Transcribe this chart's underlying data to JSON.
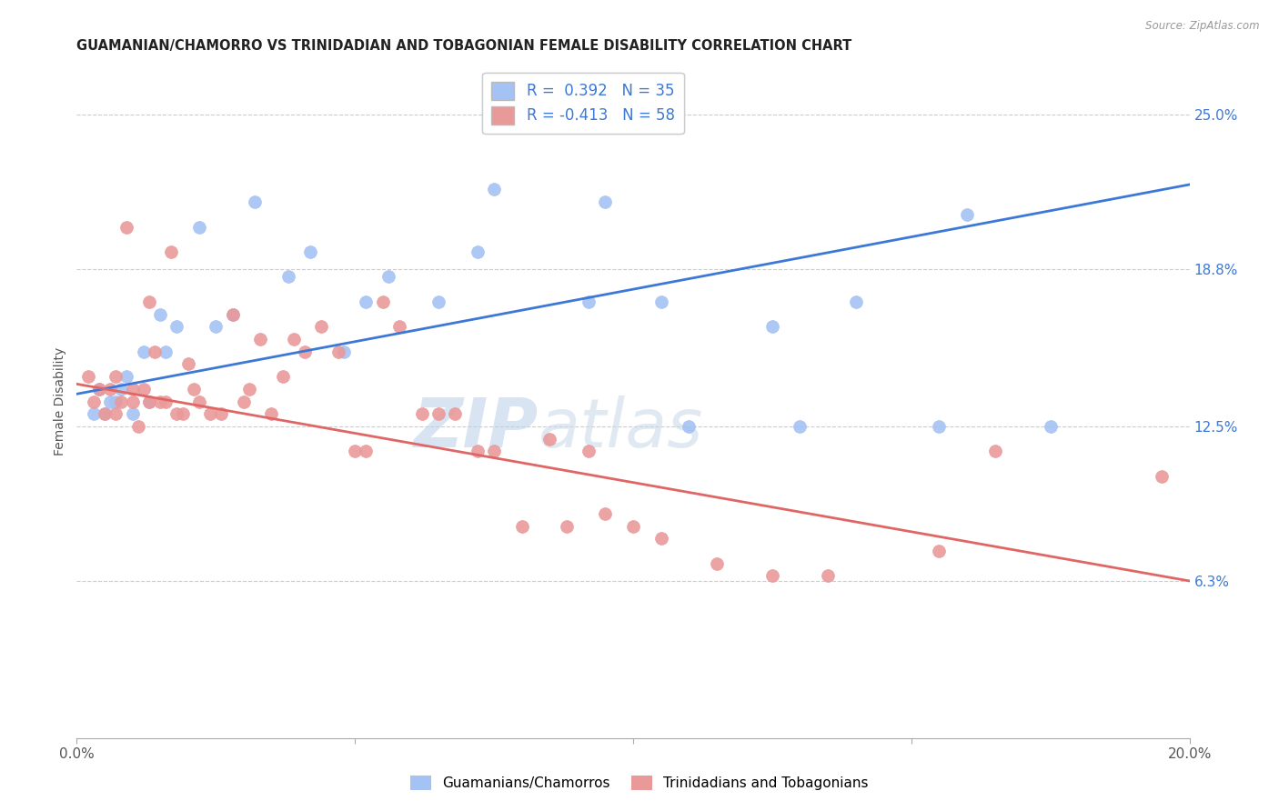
{
  "title": "GUAMANIAN/CHAMORRO VS TRINIDADIAN AND TOBAGONIAN FEMALE DISABILITY CORRELATION CHART",
  "source": "Source: ZipAtlas.com",
  "xlim": [
    0.0,
    0.2
  ],
  "ylim": [
    0.0,
    0.27
  ],
  "blue_R": 0.392,
  "blue_N": 35,
  "pink_R": -0.413,
  "pink_N": 58,
  "blue_color": "#a4c2f4",
  "pink_color": "#ea9999",
  "blue_line_color": "#3c78d8",
  "pink_line_color": "#e06666",
  "watermark_zip": "ZIP",
  "watermark_atlas": "atlas",
  "legend_label_blue": "Guamanians/Chamorros",
  "legend_label_pink": "Trinidadians and Tobagonians",
  "blue_line_x0": 0.0,
  "blue_line_y0": 0.138,
  "blue_line_x1": 0.2,
  "blue_line_y1": 0.222,
  "pink_line_x0": 0.0,
  "pink_line_y0": 0.142,
  "pink_line_x1": 0.2,
  "pink_line_y1": 0.063,
  "blue_scatter_x": [
    0.003,
    0.004,
    0.005,
    0.006,
    0.007,
    0.008,
    0.009,
    0.01,
    0.012,
    0.013,
    0.015,
    0.016,
    0.018,
    0.022,
    0.025,
    0.028,
    0.032,
    0.038,
    0.042,
    0.048,
    0.052,
    0.056,
    0.065,
    0.072,
    0.075,
    0.092,
    0.095,
    0.105,
    0.11,
    0.125,
    0.13,
    0.14,
    0.155,
    0.16,
    0.175
  ],
  "blue_scatter_y": [
    0.13,
    0.14,
    0.13,
    0.135,
    0.135,
    0.14,
    0.145,
    0.13,
    0.155,
    0.135,
    0.17,
    0.155,
    0.165,
    0.205,
    0.165,
    0.17,
    0.215,
    0.185,
    0.195,
    0.155,
    0.175,
    0.185,
    0.175,
    0.195,
    0.22,
    0.175,
    0.215,
    0.175,
    0.125,
    0.165,
    0.125,
    0.175,
    0.125,
    0.21,
    0.125
  ],
  "pink_scatter_x": [
    0.002,
    0.003,
    0.004,
    0.005,
    0.006,
    0.007,
    0.007,
    0.008,
    0.009,
    0.01,
    0.01,
    0.011,
    0.012,
    0.013,
    0.013,
    0.014,
    0.015,
    0.016,
    0.017,
    0.018,
    0.019,
    0.02,
    0.021,
    0.022,
    0.024,
    0.026,
    0.028,
    0.03,
    0.031,
    0.033,
    0.035,
    0.037,
    0.039,
    0.041,
    0.044,
    0.047,
    0.05,
    0.052,
    0.055,
    0.058,
    0.062,
    0.065,
    0.068,
    0.072,
    0.075,
    0.08,
    0.085,
    0.088,
    0.092,
    0.095,
    0.1,
    0.105,
    0.115,
    0.125,
    0.135,
    0.155,
    0.165,
    0.195
  ],
  "pink_scatter_y": [
    0.145,
    0.135,
    0.14,
    0.13,
    0.14,
    0.145,
    0.13,
    0.135,
    0.205,
    0.135,
    0.14,
    0.125,
    0.14,
    0.135,
    0.175,
    0.155,
    0.135,
    0.135,
    0.195,
    0.13,
    0.13,
    0.15,
    0.14,
    0.135,
    0.13,
    0.13,
    0.17,
    0.135,
    0.14,
    0.16,
    0.13,
    0.145,
    0.16,
    0.155,
    0.165,
    0.155,
    0.115,
    0.115,
    0.175,
    0.165,
    0.13,
    0.13,
    0.13,
    0.115,
    0.115,
    0.085,
    0.12,
    0.085,
    0.115,
    0.09,
    0.085,
    0.08,
    0.07,
    0.065,
    0.065,
    0.075,
    0.115,
    0.105
  ]
}
